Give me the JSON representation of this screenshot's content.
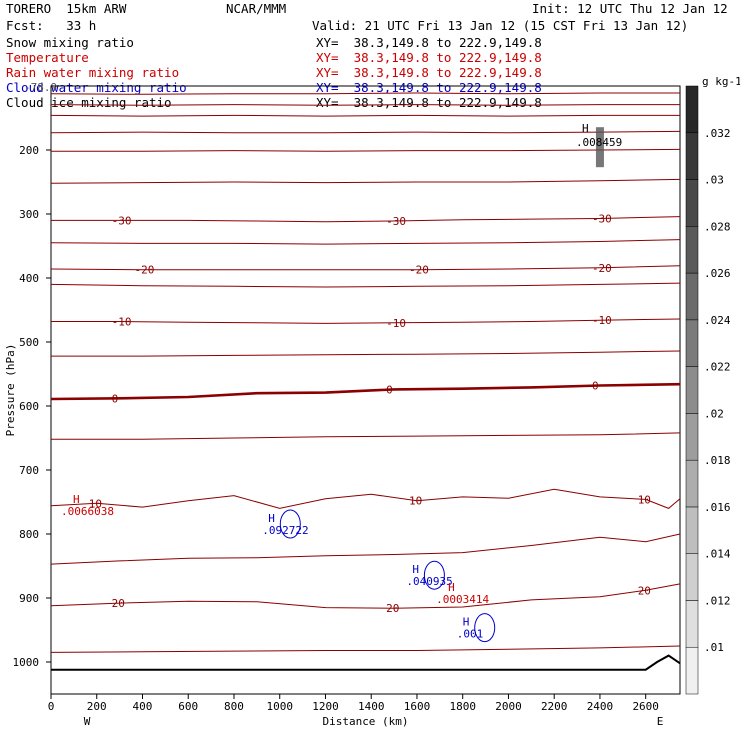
{
  "header": {
    "model": "TORERO  15km ARW",
    "center": "NCAR/MMM",
    "init": "Init: 12 UTC Thu 12 Jan 12",
    "fcst": "Fcst:   33 h",
    "valid": "Valid: 21 UTC Fri 13 Jan 12 (15 CST Fri 13 Jan 12)"
  },
  "fields": [
    {
      "name": "Snow mixing ratio",
      "xy": "XY=  38.3,149.8 to 222.9,149.8",
      "color": "#000000"
    },
    {
      "name": "Temperature",
      "xy": "XY=  38.3,149.8 to 222.9,149.8",
      "color": "#cc0000"
    },
    {
      "name": "Rain water mixing ratio",
      "xy": "XY=  38.3,149.8 to 222.9,149.8",
      "color": "#cc0000"
    },
    {
      "name": "Cloud water mixing ratio",
      "xy": "XY=  38.3,149.8 to 222.9,149.8",
      "color": "#0000cc"
    },
    {
      "name": "Cloud ice mixing ratio",
      "xy": "XY=  38.3,149.8 to 222.9,149.8",
      "color": "#000000"
    }
  ],
  "overlap_label": "-78.9",
  "colors": {
    "temperature": "#8b0000",
    "cloud_water": "#0000cc",
    "rain": "#cc0000",
    "terrain": "#000000",
    "snow": "#000000"
  },
  "chart_data": {
    "type": "cross-section",
    "xlabel": "Distance (km)",
    "ylabel": "Pressure (hPa)",
    "xlim": [
      0,
      2750
    ],
    "ylim": [
      1050,
      100
    ],
    "xticks": [
      0,
      200,
      400,
      600,
      800,
      1000,
      1200,
      1400,
      1600,
      1800,
      2000,
      2200,
      2400,
      2600
    ],
    "yticks": [
      200,
      300,
      400,
      500,
      600,
      700,
      800,
      900,
      1000
    ],
    "endpoints": {
      "left": "W",
      "right": "E"
    },
    "temperature_contours": [
      {
        "value": -60,
        "label": "",
        "points": [
          [
            0,
            112
          ],
          [
            400,
            113
          ],
          [
            800,
            112
          ],
          [
            1200,
            112
          ],
          [
            1600,
            111
          ],
          [
            2000,
            112
          ],
          [
            2400,
            111
          ],
          [
            2750,
            111
          ]
        ]
      },
      {
        "value": -55,
        "label": "",
        "points": [
          [
            0,
            129
          ],
          [
            400,
            130
          ],
          [
            800,
            129
          ],
          [
            1200,
            130
          ],
          [
            1600,
            129
          ],
          [
            2000,
            130
          ],
          [
            2400,
            129
          ],
          [
            2750,
            129
          ]
        ]
      },
      {
        "value": -50,
        "label": "",
        "points": [
          [
            0,
            146
          ],
          [
            400,
            147
          ],
          [
            800,
            146
          ],
          [
            1200,
            147
          ],
          [
            1600,
            146
          ],
          [
            2000,
            147
          ],
          [
            2400,
            146
          ],
          [
            2750,
            146
          ]
        ]
      },
      {
        "value": -45,
        "label": "",
        "points": [
          [
            0,
            173
          ],
          [
            400,
            172
          ],
          [
            800,
            173
          ],
          [
            1200,
            173
          ],
          [
            1600,
            172
          ],
          [
            2000,
            173
          ],
          [
            2400,
            172
          ],
          [
            2750,
            171
          ]
        ]
      },
      {
        "value": -40,
        "label": "",
        "points": [
          [
            0,
            202
          ],
          [
            400,
            202
          ],
          [
            800,
            201
          ],
          [
            1200,
            202
          ],
          [
            1600,
            201
          ],
          [
            2000,
            201
          ],
          [
            2400,
            200
          ],
          [
            2750,
            199
          ]
        ]
      },
      {
        "value": -35,
        "label": "",
        "points": [
          [
            0,
            252
          ],
          [
            400,
            251
          ],
          [
            800,
            250
          ],
          [
            1200,
            251
          ],
          [
            1600,
            250
          ],
          [
            2000,
            250
          ],
          [
            2400,
            248
          ],
          [
            2750,
            246
          ]
        ]
      },
      {
        "value": -30,
        "label": "-30",
        "points": [
          [
            0,
            310
          ],
          [
            300,
            310
          ],
          [
            600,
            310
          ],
          [
            900,
            311
          ],
          [
            1200,
            312
          ],
          [
            1500,
            311
          ],
          [
            1800,
            309
          ],
          [
            2100,
            308
          ],
          [
            2400,
            307
          ],
          [
            2750,
            304
          ]
        ]
      },
      {
        "value": -25,
        "label": "",
        "points": [
          [
            0,
            345
          ],
          [
            400,
            346
          ],
          [
            800,
            346
          ],
          [
            1200,
            347
          ],
          [
            1600,
            346
          ],
          [
            2000,
            345
          ],
          [
            2400,
            343
          ],
          [
            2750,
            340
          ]
        ]
      },
      {
        "value": -20,
        "label": "-20",
        "points": [
          [
            0,
            386
          ],
          [
            400,
            387
          ],
          [
            800,
            387
          ],
          [
            1200,
            387
          ],
          [
            1600,
            387
          ],
          [
            2000,
            386
          ],
          [
            2400,
            384
          ],
          [
            2750,
            381
          ]
        ]
      },
      {
        "value": -15,
        "label": "",
        "points": [
          [
            0,
            410
          ],
          [
            400,
            412
          ],
          [
            800,
            413
          ],
          [
            1200,
            414
          ],
          [
            1600,
            413
          ],
          [
            2000,
            412
          ],
          [
            2400,
            410
          ],
          [
            2750,
            408
          ]
        ]
      },
      {
        "value": -10,
        "label": "-10",
        "points": [
          [
            0,
            468
          ],
          [
            300,
            468
          ],
          [
            600,
            469
          ],
          [
            900,
            470
          ],
          [
            1200,
            471
          ],
          [
            1500,
            470
          ],
          [
            1800,
            469
          ],
          [
            2100,
            468
          ],
          [
            2400,
            466
          ],
          [
            2750,
            464
          ]
        ]
      },
      {
        "value": -5,
        "label": "",
        "points": [
          [
            0,
            522
          ],
          [
            400,
            522
          ],
          [
            800,
            521
          ],
          [
            1200,
            520
          ],
          [
            1600,
            519
          ],
          [
            2000,
            518
          ],
          [
            2400,
            516
          ],
          [
            2750,
            514
          ]
        ]
      },
      {
        "value": 0,
        "label": "0",
        "points": [
          [
            0,
            589
          ],
          [
            300,
            588
          ],
          [
            600,
            586
          ],
          [
            900,
            580
          ],
          [
            1200,
            579
          ],
          [
            1500,
            574
          ],
          [
            1800,
            573
          ],
          [
            2100,
            571
          ],
          [
            2400,
            568
          ],
          [
            2750,
            566
          ]
        ]
      },
      {
        "value": 5,
        "label": "",
        "points": [
          [
            0,
            652
          ],
          [
            400,
            652
          ],
          [
            800,
            650
          ],
          [
            1200,
            648
          ],
          [
            1600,
            647
          ],
          [
            2000,
            646
          ],
          [
            2400,
            645
          ],
          [
            2750,
            642
          ]
        ]
      },
      {
        "value": 10,
        "label": "10",
        "points": [
          [
            0,
            756
          ],
          [
            200,
            752
          ],
          [
            400,
            758
          ],
          [
            600,
            748
          ],
          [
            800,
            740
          ],
          [
            1000,
            760
          ],
          [
            1200,
            745
          ],
          [
            1400,
            738
          ],
          [
            1600,
            748
          ],
          [
            1800,
            742
          ],
          [
            2000,
            744
          ],
          [
            2200,
            730
          ],
          [
            2400,
            742
          ],
          [
            2600,
            746
          ],
          [
            2700,
            760
          ],
          [
            2750,
            745
          ]
        ]
      },
      {
        "value": 15,
        "label": "",
        "points": [
          [
            0,
            847
          ],
          [
            300,
            842
          ],
          [
            600,
            838
          ],
          [
            900,
            837
          ],
          [
            1200,
            834
          ],
          [
            1500,
            832
          ],
          [
            1800,
            829
          ],
          [
            2100,
            818
          ],
          [
            2400,
            805
          ],
          [
            2600,
            812
          ],
          [
            2750,
            800
          ]
        ]
      },
      {
        "value": 20,
        "label": "20",
        "points": [
          [
            0,
            912
          ],
          [
            300,
            908
          ],
          [
            600,
            905
          ],
          [
            900,
            906
          ],
          [
            1200,
            915
          ],
          [
            1500,
            916
          ],
          [
            1800,
            914
          ],
          [
            2100,
            903
          ],
          [
            2400,
            898
          ],
          [
            2600,
            888
          ],
          [
            2750,
            878
          ]
        ]
      },
      {
        "value": 25,
        "label": "",
        "points": [
          [
            0,
            985
          ],
          [
            400,
            984
          ],
          [
            800,
            983
          ],
          [
            1200,
            982
          ],
          [
            1600,
            982
          ],
          [
            2000,
            980
          ],
          [
            2400,
            978
          ],
          [
            2750,
            975
          ]
        ]
      }
    ],
    "terrain_pressure": [
      [
        0,
        1012
      ],
      [
        2600,
        1012
      ],
      [
        2650,
        1000
      ],
      [
        2700,
        990
      ],
      [
        2750,
        1002
      ]
    ],
    "snow_max": {
      "label": ".008459",
      "x": 2400,
      "p": 180
    },
    "cloud_water_maxima": [
      {
        "label": ".092722",
        "x": 950,
        "p": 800
      },
      {
        "label": ".040935",
        "x": 1580,
        "p": 880
      },
      {
        "label": ".001",
        "x": 1800,
        "p": 962
      }
    ],
    "rain_maxima": [
      {
        "label": ".0066038",
        "x": 140,
        "p": 770
      },
      {
        "label": ".0003414",
        "x": 1780,
        "p": 908
      }
    ],
    "cloud_ice_colorbar": {
      "unit": "g kg-1",
      "levels": [
        ".01",
        ".012",
        ".014",
        ".016",
        ".018",
        ".02",
        ".022",
        ".024",
        ".026",
        ".028",
        ".03",
        ".032"
      ]
    }
  }
}
